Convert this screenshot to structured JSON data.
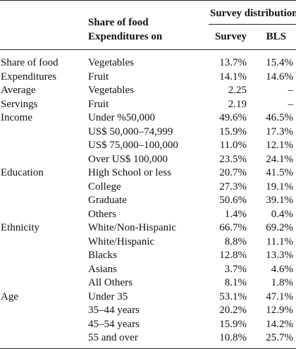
{
  "header": {
    "col_category": "Share of food Expenditures on",
    "col_category_line1": "Share of food",
    "col_category_line2": "Expenditures on",
    "group_title": "Survey distribution",
    "col_survey": "Survey",
    "col_bls": "BLS"
  },
  "rows": [
    {
      "group": "Share of food",
      "category": "Vegetables",
      "survey": "13.7%",
      "bls": "15.4%"
    },
    {
      "group": "Expenditures",
      "category": "Fruit",
      "survey": "14.1%",
      "bls": "14.6%"
    },
    {
      "group": "Average",
      "category": "Vegetables",
      "survey": "2.25",
      "bls": "–"
    },
    {
      "group": "Servings",
      "category": "Fruit",
      "survey": "2.19",
      "bls": "–"
    },
    {
      "group": "Income",
      "category": "Under %50,000",
      "survey": "49.6%",
      "bls": "46.5%"
    },
    {
      "group": "",
      "category": "US$ 50,000–74,999",
      "survey": "15.9%",
      "bls": "17.3%"
    },
    {
      "group": "",
      "category": "US$ 75,000–100,000",
      "survey": "11.0%",
      "bls": "12.1%"
    },
    {
      "group": "",
      "category": "Over US$ 100,000",
      "survey": "23.5%",
      "bls": "24.1%"
    },
    {
      "group": "Education",
      "category": "High School or less",
      "survey": "20.7%",
      "bls": "41.5%"
    },
    {
      "group": "",
      "category": "College",
      "survey": "27.3%",
      "bls": "19.1%"
    },
    {
      "group": "",
      "category": "Graduate",
      "survey": "50.6%",
      "bls": "39.1%"
    },
    {
      "group": "",
      "category": "Others",
      "survey": "1.4%",
      "bls": "0.4%"
    },
    {
      "group": "Ethnicity",
      "category": "White/Non-Hispanic",
      "survey": "66.7%",
      "bls": "69.2%"
    },
    {
      "group": "",
      "category": "White/Hispanic",
      "survey": "8.8%",
      "bls": "11.1%"
    },
    {
      "group": "",
      "category": "Blacks",
      "survey": "12.8%",
      "bls": "13.3%"
    },
    {
      "group": "",
      "category": "Asians",
      "survey": "3.7%",
      "bls": "4.6%"
    },
    {
      "group": "",
      "category": "All Others",
      "survey": "8.1%",
      "bls": "1.8%"
    },
    {
      "group": "Age",
      "category": "Under 35",
      "survey": "53.1%",
      "bls": "47.1%"
    },
    {
      "group": "",
      "category": "35–44 years",
      "survey": "20.2%",
      "bls": "12.9%"
    },
    {
      "group": "",
      "category": "45–54 years",
      "survey": "15.9%",
      "bls": "14.2%"
    },
    {
      "group": "",
      "category": "55 and over",
      "survey": "10.8%",
      "bls": "25.7%"
    }
  ]
}
